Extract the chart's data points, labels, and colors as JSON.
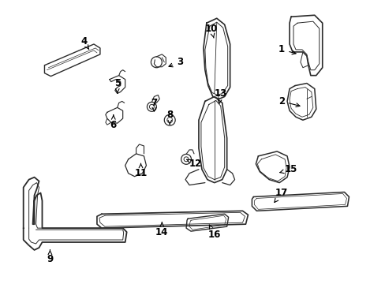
{
  "bg_color": "#ffffff",
  "line_color": "#2a2a2a",
  "figsize": [
    4.89,
    3.6
  ],
  "dpi": 100,
  "labels": [
    [
      "1",
      358,
      62,
      380,
      68
    ],
    [
      "2",
      358,
      128,
      385,
      135
    ],
    [
      "3",
      228,
      78,
      210,
      85
    ],
    [
      "4",
      105,
      52,
      112,
      62
    ],
    [
      "5",
      148,
      105,
      148,
      118
    ],
    [
      "6",
      143,
      158,
      143,
      145
    ],
    [
      "7",
      195,
      130,
      195,
      142
    ],
    [
      "8",
      215,
      145,
      215,
      158
    ],
    [
      "9",
      62,
      330,
      62,
      315
    ],
    [
      "10",
      268,
      35,
      272,
      50
    ],
    [
      "11",
      178,
      220,
      178,
      207
    ],
    [
      "12",
      248,
      208,
      236,
      202
    ],
    [
      "13",
      280,
      118,
      278,
      132
    ],
    [
      "14",
      205,
      295,
      205,
      282
    ],
    [
      "15",
      370,
      215,
      352,
      220
    ],
    [
      "16",
      272,
      298,
      265,
      285
    ],
    [
      "17",
      358,
      245,
      348,
      258
    ]
  ]
}
